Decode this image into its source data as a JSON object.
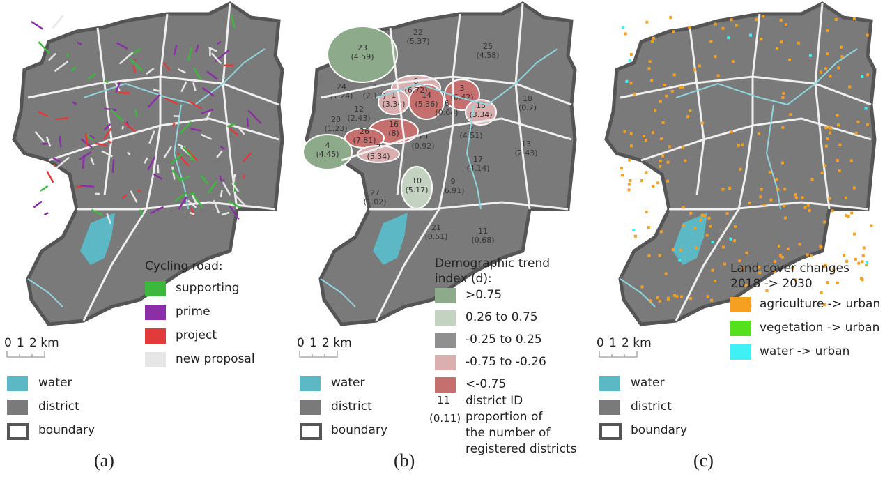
{
  "panels": [
    {
      "caption": "(a)",
      "legend_title": "Cycling road:",
      "legend": [
        {
          "label": "supporting",
          "color": "#3cb83c"
        },
        {
          "label": "prime",
          "color": "#8a2fa6"
        },
        {
          "label": "project",
          "color": "#e03a3a"
        },
        {
          "label": "new proposal",
          "color": "#e6e6e6"
        }
      ]
    },
    {
      "caption": "(b)",
      "legend_title": "Demographic trend index (d):",
      "legend_title_lines": [
        "Demographic trend",
        "index (d):"
      ],
      "legend": [
        {
          "label": ">0.75",
          "color": "#8daa8a"
        },
        {
          "label": "0.26 to 0.75",
          "color": "#c4d3c1"
        },
        {
          "label": "-0.25 to 0.25",
          "color": "#8f8f8f"
        },
        {
          "label": "-0.75 to -0.26",
          "color": "#dbaeb0"
        },
        {
          "label": "<-0.75",
          "color": "#c5706f"
        }
      ],
      "id_example": {
        "id": "11",
        "value": "(0.11)",
        "desc_lines": [
          "district ID",
          "proportion of",
          "the number of",
          "registered districts"
        ]
      },
      "districts": [
        {
          "id": "23",
          "value": "(4.59)",
          "class": ">0.75"
        },
        {
          "id": "22",
          "value": "(5.37)",
          "class": "-0.25 to 0.25"
        },
        {
          "id": "25",
          "value": "(4.58)",
          "class": "-0.25 to 0.25"
        },
        {
          "id": "8",
          "value": "(6.72)",
          "class": "-0.75 to -0.26"
        },
        {
          "id": "24",
          "value": "(1.24)",
          "class": "-0.25 to 0.25"
        },
        {
          "id": "2",
          "value": "(2.17)",
          "class": "-0.25 to 0.25"
        },
        {
          "id": "1",
          "value": "(3.34)",
          "class": "-0.75 to -0.26"
        },
        {
          "id": "14",
          "value": "(5.36)",
          "class": "<-0.75"
        },
        {
          "id": "3",
          "value": "(6.42)",
          "class": "<-0.75"
        },
        {
          "id": "6",
          "value": "(0.64)",
          "class": "-0.25 to 0.25"
        },
        {
          "id": "15",
          "value": "(3.34)",
          "class": "-0.75 to -0.26"
        },
        {
          "id": "12",
          "value": "(2.43)",
          "class": "-0.25 to 0.25"
        },
        {
          "id": "20",
          "value": "(1.23)",
          "class": "-0.25 to 0.25"
        },
        {
          "id": "16",
          "value": "(8)",
          "class": "<-0.75"
        },
        {
          "id": "5",
          "value": "(4.51)",
          "class": "-0.25 to 0.25"
        },
        {
          "id": "26",
          "value": "(7.81)",
          "class": "<-0.75"
        },
        {
          "id": "19",
          "value": "(0.92)",
          "class": "-0.25 to 0.25"
        },
        {
          "id": "7",
          "value": "(5.34)",
          "class": "-0.75 to -0.26"
        },
        {
          "id": "4",
          "value": "(4.45)",
          "class": ">0.75"
        },
        {
          "id": "18",
          "value": "(0.7)",
          "class": "-0.25 to 0.25"
        },
        {
          "id": "13",
          "value": "(2.43)",
          "class": "-0.25 to 0.25"
        },
        {
          "id": "17",
          "value": "(4.14)",
          "class": "-0.25 to 0.25"
        },
        {
          "id": "9",
          "value": "(6.91)",
          "class": "-0.25 to 0.25"
        },
        {
          "id": "10",
          "value": "(5.17)",
          "class": "0.26 to 0.75"
        },
        {
          "id": "27",
          "value": "(1.02)",
          "class": "-0.25 to 0.25"
        },
        {
          "id": "21",
          "value": "(0.51)",
          "class": "-0.25 to 0.25"
        },
        {
          "id": "11",
          "value": "(0.68)",
          "class": "-0.25 to 0.25"
        }
      ]
    },
    {
      "caption": "(c)",
      "legend_title": "Land cover changes 2018 -> 2030",
      "legend_title_lines": [
        "Land cover changes",
        "2018 -> 2030"
      ],
      "legend": [
        {
          "label": "agriculture -> urban",
          "color": "#f5a020"
        },
        {
          "label": "vegetation -> urban",
          "color": "#55e01e"
        },
        {
          "label": "water -> urban",
          "color": "#3ff0f5"
        }
      ]
    }
  ],
  "common": {
    "scale": {
      "ticks": [
        "0",
        "1",
        "2 km"
      ]
    },
    "legend": [
      {
        "label": "water",
        "color": "#5bb8c4"
      },
      {
        "label": "district",
        "color": "#7a7a7a"
      },
      {
        "label": "boundary",
        "color": "#ffffff"
      }
    ]
  },
  "colors": {
    "district": "#7a7a7a",
    "boundary": "#555555",
    "water": "#5bb8c4",
    "district_line": "#ffffff"
  }
}
